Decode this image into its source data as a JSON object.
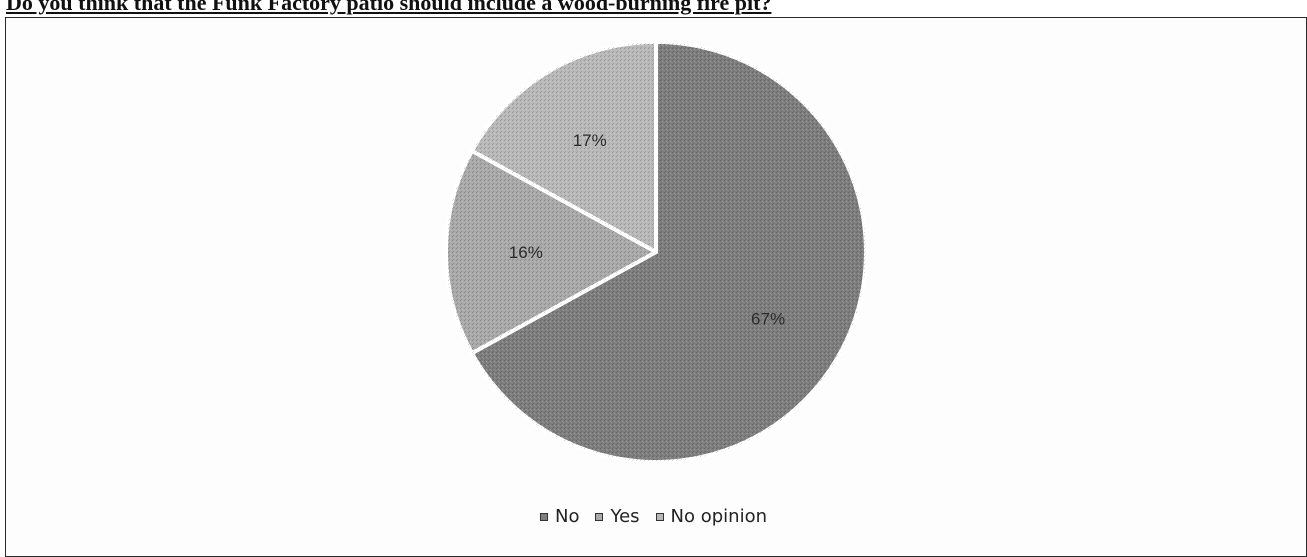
{
  "question": "Do you think that the Funk Factory patio should include a wood-burning fire pit?",
  "chart_data": {
    "type": "pie",
    "title": "Do you think that the Funk Factory patio should include a wood-burning fire pit?",
    "categories": [
      "No",
      "Yes",
      "No opinion"
    ],
    "values": [
      67,
      16,
      17
    ],
    "labels": [
      "67%",
      "16%",
      "17%"
    ],
    "colors": [
      "#7d7d7d",
      "#a9a9a9",
      "#b8b8b8"
    ],
    "start": "12 o'clock, clockwise",
    "legend_position": "bottom"
  },
  "legend": {
    "items": [
      {
        "label": "No",
        "color": "#7d7d7d"
      },
      {
        "label": "Yes",
        "color": "#a9a9a9"
      },
      {
        "label": "No opinion",
        "color": "#b8b8b8"
      }
    ]
  }
}
